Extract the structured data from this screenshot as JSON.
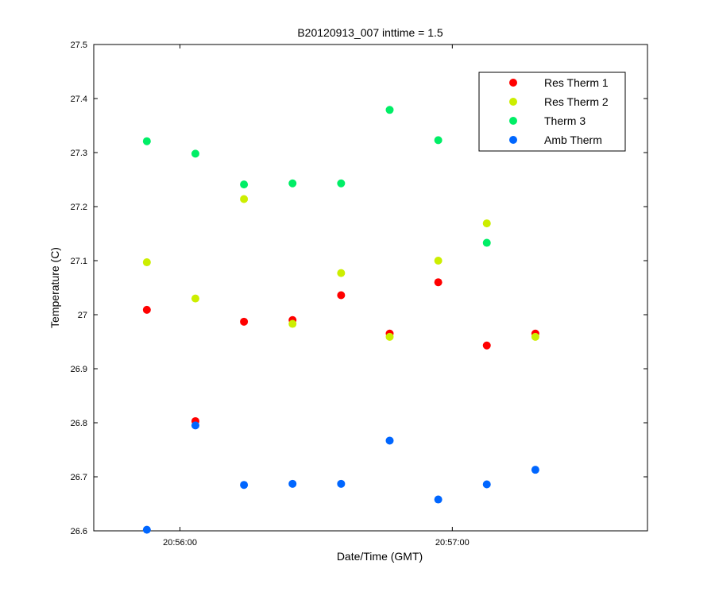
{
  "chart_data": {
    "type": "scatter",
    "title": "B20120913_007 inttime = 1.5",
    "xlabel": "Date/Time (GMT)",
    "ylabel": "Temperature (C)",
    "x_tick_labels": [
      "20:56:00",
      "20:57:00"
    ],
    "xlim": [
      "20:55:41",
      "20:57:43"
    ],
    "ylim": [
      26.6,
      27.5
    ],
    "y_ticks": [
      "26.6",
      "26.7",
      "26.8",
      "26.9",
      "27",
      "27.1",
      "27.2",
      "27.3",
      "27.4",
      "27.5"
    ],
    "grid": false,
    "legend_position": "top-right",
    "x": [
      "20:55:52.7",
      "20:56:03.4",
      "20:56:14.1",
      "20:56:24.8",
      "20:56:35.5",
      "20:56:46.2",
      "20:56:56.9",
      "20:57:07.6",
      "20:57:18.3"
    ],
    "series": [
      {
        "name": "Res Therm 1",
        "color": "#ff0000",
        "values": [
          27.009,
          26.803,
          26.987,
          26.99,
          27.036,
          26.965,
          27.06,
          26.943,
          26.965
        ]
      },
      {
        "name": "Res Therm 2",
        "color": "#ccee00",
        "values": [
          27.097,
          27.03,
          27.214,
          26.983,
          27.077,
          26.959,
          27.1,
          27.169,
          26.959
        ]
      },
      {
        "name": "Therm 3",
        "color": "#00ee66",
        "values": [
          27.321,
          27.298,
          27.241,
          27.243,
          27.243,
          27.379,
          27.323,
          27.133,
          null
        ]
      },
      {
        "name": "Amb Therm",
        "color": "#0066ff",
        "values": [
          26.602,
          26.795,
          26.685,
          26.687,
          26.687,
          26.767,
          26.658,
          26.686,
          26.713
        ]
      }
    ]
  }
}
